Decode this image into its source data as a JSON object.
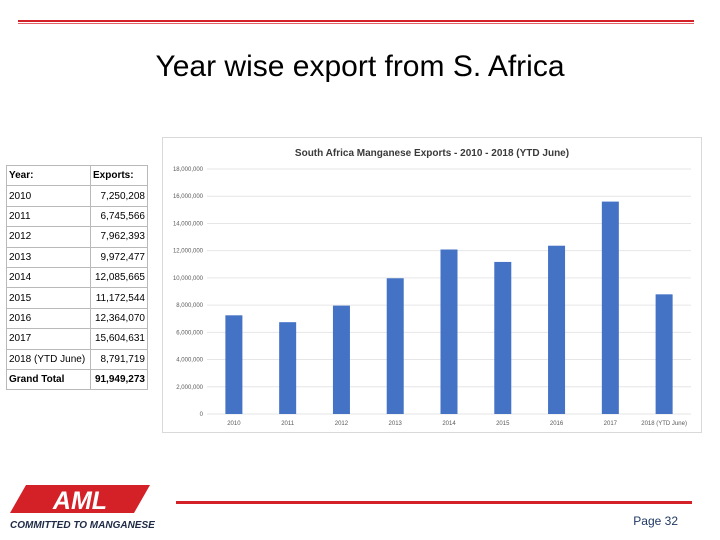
{
  "slide": {
    "title": "Year wise export from S. Africa",
    "page_label": "Page 32"
  },
  "logo": {
    "brand": "AML",
    "tagline": "COMMITTED TO MANGANESE"
  },
  "colors": {
    "accent_red": "#d42027",
    "bar_blue": "#4472c4"
  },
  "table": {
    "headers": [
      "Year:",
      "Exports:"
    ],
    "rows": [
      [
        "2010",
        "7,250,208"
      ],
      [
        "2011",
        "6,745,566"
      ],
      [
        "2012",
        "7,962,393"
      ],
      [
        "2013",
        "9,972,477"
      ],
      [
        "2014",
        "12,085,665"
      ],
      [
        "2015",
        "11,172,544"
      ],
      [
        "2016",
        "12,364,070"
      ],
      [
        "2017",
        "15,604,631"
      ],
      [
        "2018 (YTD June)",
        "8,791,719"
      ],
      [
        "Grand Total",
        "91,949,273"
      ]
    ]
  },
  "chart_data": {
    "type": "bar",
    "title": "South Africa Manganese Exports - 2010 - 2018 (YTD June)",
    "categories": [
      "2010",
      "2011",
      "2012",
      "2013",
      "2014",
      "2015",
      "2016",
      "2017",
      "2018 (YTD June)"
    ],
    "values": [
      7250208,
      6745566,
      7962393,
      9972477,
      12085665,
      11172544,
      12364070,
      15604631,
      8791719
    ],
    "ylim": [
      0,
      18000000
    ],
    "yticks": [
      0,
      2000000,
      4000000,
      6000000,
      8000000,
      10000000,
      12000000,
      14000000,
      16000000,
      18000000
    ],
    "ytick_labels": [
      "0",
      "2,000,000",
      "4,000,000",
      "6,000,000",
      "8,000,000",
      "10,000,000",
      "12,000,000",
      "14,000,000",
      "16,000,000",
      "18,000,000"
    ],
    "xlabel": "",
    "ylabel": "",
    "grid": true,
    "legend": "none"
  }
}
